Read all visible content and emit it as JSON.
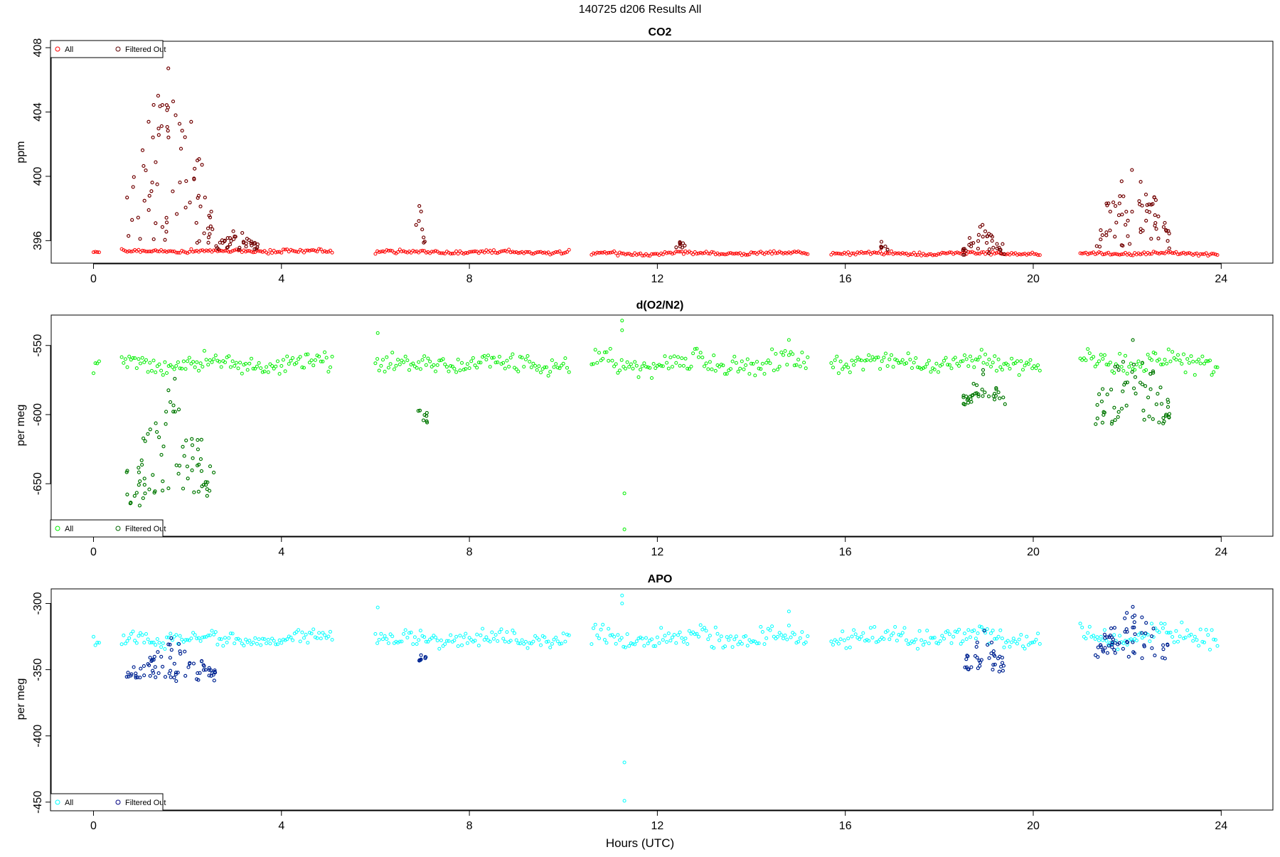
{
  "figure": {
    "title": "140725   d206   Results All",
    "xlabel": "Hours (UTC)"
  },
  "colors": {
    "co2_all": "#ff0000",
    "co2_filtered": "#5a0000",
    "o2_all": "#00ee00",
    "o2_filtered": "#006400",
    "apo_all": "#00ffff",
    "apo_filtered": "#000080"
  },
  "chart_data": [
    {
      "type": "scatter",
      "title": "CO2",
      "ylabel": "ppm",
      "xlabel": "",
      "xlim": [
        -0.9,
        25.1
      ],
      "ylim": [
        394.6,
        408.4
      ],
      "xticks": [
        0,
        4,
        8,
        12,
        16,
        20,
        24
      ],
      "yticks": [
        396,
        400,
        404,
        408
      ],
      "legend": {
        "position": "top-left",
        "entries": [
          "All",
          "Filtered Out"
        ]
      },
      "grid": false,
      "segments": [
        {
          "x": [
            0.0,
            0.15
          ],
          "base": 395.3,
          "amp": 0.05
        },
        {
          "x": [
            0.6,
            5.1
          ],
          "base": 395.35,
          "amp": 0.1
        },
        {
          "x": [
            6.0,
            10.15
          ],
          "base": 395.3,
          "amp": 0.1
        },
        {
          "x": [
            10.6,
            15.2
          ],
          "base": 395.2,
          "amp": 0.1
        },
        {
          "x": [
            15.7,
            20.15
          ],
          "base": 395.2,
          "amp": 0.1
        },
        {
          "x": [
            21.0,
            23.95
          ],
          "base": 395.2,
          "amp": 0.1
        }
      ],
      "excursions": [
        {
          "x": [
            0.7,
            2.6
          ],
          "lo": 395.8,
          "hi": 408.0
        },
        {
          "x": [
            2.6,
            3.5
          ],
          "lo": 395.4,
          "hi": 396.9
        },
        {
          "x": [
            6.85,
            7.05
          ],
          "lo": 395.5,
          "hi": 399.9
        },
        {
          "x": [
            12.4,
            12.6
          ],
          "lo": 395.4,
          "hi": 396.2
        },
        {
          "x": [
            16.7,
            16.9
          ],
          "lo": 395.4,
          "hi": 396.1
        },
        {
          "x": [
            18.5,
            19.4
          ],
          "lo": 395.1,
          "hi": 397.3
        },
        {
          "x": [
            21.3,
            22.9
          ],
          "lo": 395.5,
          "hi": 401.3
        }
      ]
    },
    {
      "type": "scatter",
      "title": "d(O2/N2)",
      "ylabel": "per meg",
      "xlabel": "",
      "xlim": [
        -0.9,
        25.1
      ],
      "ylim": [
        -688,
        -528
      ],
      "xticks": [
        0,
        4,
        8,
        12,
        16,
        20,
        24
      ],
      "yticks": [
        -550,
        -600,
        -650
      ],
      "legend": {
        "position": "bottom-left",
        "entries": [
          "All",
          "Filtered Out"
        ]
      },
      "grid": false,
      "segments": [
        {
          "x": [
            0.0,
            0.15
          ],
          "base": -566,
          "amp": 4
        },
        {
          "x": [
            0.6,
            5.1
          ],
          "base": -563,
          "amp": 6
        },
        {
          "x": [
            6.0,
            10.15
          ],
          "base": -563,
          "amp": 6
        },
        {
          "x": [
            10.6,
            15.2
          ],
          "base": -563,
          "amp": 7
        },
        {
          "x": [
            15.7,
            20.15
          ],
          "base": -562,
          "amp": 6
        },
        {
          "x": [
            21.0,
            23.95
          ],
          "base": -562,
          "amp": 7
        }
      ],
      "excursions": [
        {
          "x": [
            0.7,
            2.6
          ],
          "lo": -666,
          "hi": -567
        },
        {
          "x": [
            6.9,
            7.1
          ],
          "lo": -607,
          "hi": -575
        },
        {
          "x": [
            18.5,
            19.4
          ],
          "lo": -594,
          "hi": -566
        },
        {
          "x": [
            21.3,
            22.9
          ],
          "lo": -607,
          "hi": -540
        }
      ],
      "outliers": [
        {
          "x": 11.25,
          "y": -532
        },
        {
          "x": 11.3,
          "y": -657
        },
        {
          "x": 11.3,
          "y": -683
        },
        {
          "x": 6.05,
          "y": -541
        },
        {
          "x": 11.25,
          "y": -539
        },
        {
          "x": 14.8,
          "y": -546
        }
      ]
    },
    {
      "type": "scatter",
      "title": "APO",
      "ylabel": "per meg",
      "xlabel": "",
      "xlim": [
        -0.9,
        25.1
      ],
      "ylim": [
        -456,
        -289
      ],
      "xticks": [
        0,
        4,
        8,
        12,
        16,
        20,
        24
      ],
      "yticks": [
        -300,
        -350,
        -400,
        -450
      ],
      "legend": {
        "position": "bottom-left",
        "entries": [
          "All",
          "Filtered Out"
        ]
      },
      "grid": false,
      "segments": [
        {
          "x": [
            0.0,
            0.15
          ],
          "base": -328,
          "amp": 4
        },
        {
          "x": [
            0.6,
            5.1
          ],
          "base": -327,
          "amp": 5
        },
        {
          "x": [
            6.0,
            10.15
          ],
          "base": -327,
          "amp": 5
        },
        {
          "x": [
            10.6,
            15.2
          ],
          "base": -325,
          "amp": 7
        },
        {
          "x": [
            15.7,
            20.15
          ],
          "base": -325,
          "amp": 6
        },
        {
          "x": [
            21.0,
            23.95
          ],
          "base": -325,
          "amp": 7
        }
      ],
      "excursions": [
        {
          "x": [
            0.7,
            2.6
          ],
          "lo": -359,
          "hi": -326
        },
        {
          "x": [
            6.9,
            7.1
          ],
          "lo": -344,
          "hi": -336
        },
        {
          "x": [
            18.5,
            19.4
          ],
          "lo": -352,
          "hi": -320
        },
        {
          "x": [
            21.3,
            22.9
          ],
          "lo": -342,
          "hi": -298
        }
      ],
      "outliers": [
        {
          "x": 11.25,
          "y": -294
        },
        {
          "x": 11.3,
          "y": -420
        },
        {
          "x": 11.3,
          "y": -449
        },
        {
          "x": 6.05,
          "y": -303
        },
        {
          "x": 11.25,
          "y": -300
        },
        {
          "x": 14.8,
          "y": -306
        }
      ]
    }
  ]
}
